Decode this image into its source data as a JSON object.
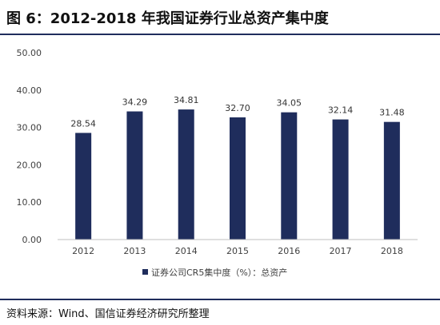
{
  "figure": {
    "title": "图 6：2012-2018 年我国证券行业总资产集中度",
    "source": "资料来源：Wind、国信证券经济研究所整理"
  },
  "colors": {
    "bar": "#1f2d5c",
    "rule": "#1f2d5c",
    "axis_text": "#404040",
    "grid": "#d9d9d9"
  },
  "chart_data": {
    "type": "bar",
    "categories": [
      "2012",
      "2013",
      "2014",
      "2015",
      "2016",
      "2017",
      "2018"
    ],
    "series": [
      {
        "name": "证券公司CR5集中度（%）：总资产",
        "values": [
          28.54,
          34.29,
          34.81,
          32.7,
          34.05,
          32.14,
          31.48
        ],
        "labels": [
          "28.54",
          "34.29",
          "34.81",
          "32.70",
          "34.05",
          "32.14",
          "31.48"
        ]
      }
    ],
    "yticks": [
      "0.00",
      "10.00",
      "20.00",
      "30.00",
      "40.00",
      "50.00"
    ],
    "ylim": [
      0,
      50
    ],
    "grid": false,
    "legend_position": "bottom-center"
  }
}
